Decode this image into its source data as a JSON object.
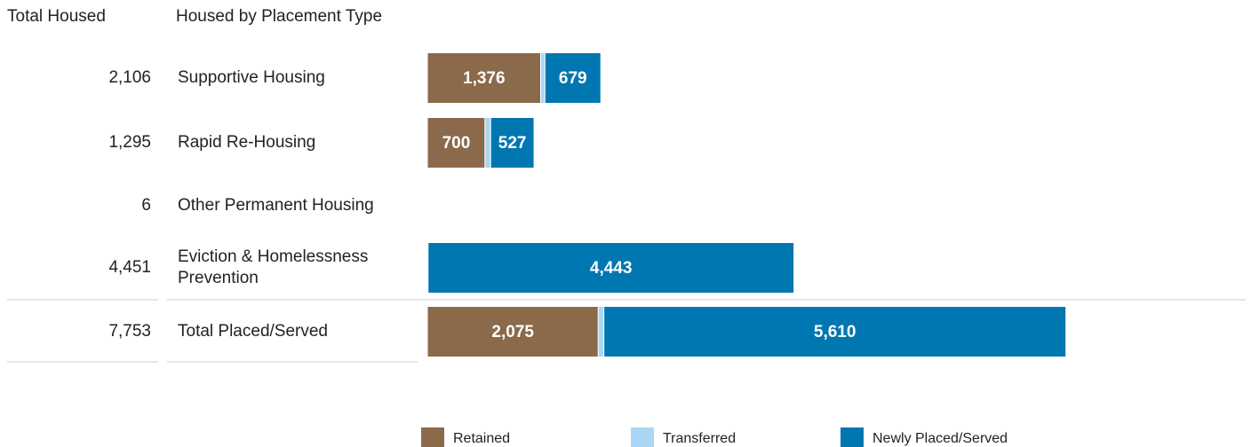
{
  "chart_data": {
    "type": "bar",
    "orientation": "horizontal",
    "stacked": true,
    "column_headers": [
      "Total Housed",
      "Housed by Placement Type"
    ],
    "categories": [
      "Supportive Housing",
      "Rapid Re-Housing",
      "Other Permanent Housing",
      "Eviction & Homelessness Prevention",
      "Total Placed/Served"
    ],
    "totals": [
      2106,
      1295,
      6,
      4451,
      7753
    ],
    "total_labels": [
      "2,106",
      "1,295",
      "6",
      "4,451",
      "7,753"
    ],
    "series": [
      {
        "name": "Retained",
        "color": "#8a6a4b",
        "values": [
          1376,
          700,
          0,
          0,
          2075
        ],
        "value_labels": [
          "1,376",
          "700",
          null,
          null,
          "2,075"
        ]
      },
      {
        "name": "Transferred",
        "color": "#a9d6f5",
        "values": [
          51,
          68,
          0,
          8,
          68
        ]
      },
      {
        "name": "Newly Placed/Served",
        "color": "#0077b0",
        "values": [
          679,
          527,
          6,
          4443,
          5610
        ],
        "value_labels": [
          "679",
          "527",
          null,
          "4,443",
          "5,610"
        ]
      }
    ],
    "xlim": [
      0,
      10000
    ],
    "legend": "bottom"
  }
}
